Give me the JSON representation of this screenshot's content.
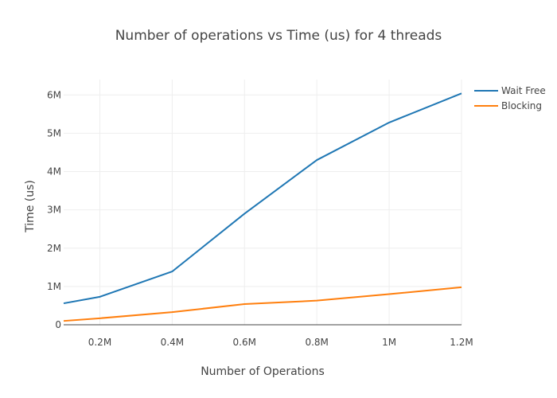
{
  "chart_data": {
    "type": "line",
    "title": "Number of operations vs Time (us) for 4 threads",
    "xlabel": "Number of Operations",
    "ylabel": "Time (us)",
    "xlim": [
      100000,
      1200000
    ],
    "ylim": [
      0,
      6400000
    ],
    "x_ticks": [
      {
        "value": 200000,
        "label": "0.2M"
      },
      {
        "value": 400000,
        "label": "0.4M"
      },
      {
        "value": 600000,
        "label": "0.6M"
      },
      {
        "value": 800000,
        "label": "0.8M"
      },
      {
        "value": 1000000,
        "label": "1M"
      },
      {
        "value": 1200000,
        "label": "1.2M"
      }
    ],
    "y_ticks": [
      {
        "value": 0,
        "label": "0"
      },
      {
        "value": 1000000,
        "label": "1M"
      },
      {
        "value": 2000000,
        "label": "2M"
      },
      {
        "value": 3000000,
        "label": "3M"
      },
      {
        "value": 4000000,
        "label": "4M"
      },
      {
        "value": 5000000,
        "label": "5M"
      },
      {
        "value": 6000000,
        "label": "6M"
      }
    ],
    "grid": true,
    "legend": "top-right",
    "x": [
      100000,
      200000,
      400000,
      600000,
      800000,
      1000000,
      1200000
    ],
    "series": [
      {
        "name": "Wait Free",
        "color": "#1f77b4",
        "values": [
          560000,
          730000,
          1390000,
          2900000,
          4300000,
          5280000,
          6040000
        ]
      },
      {
        "name": "Blocking",
        "color": "#ff7f0e",
        "values": [
          100000,
          170000,
          330000,
          540000,
          630000,
          800000,
          980000
        ]
      }
    ]
  }
}
